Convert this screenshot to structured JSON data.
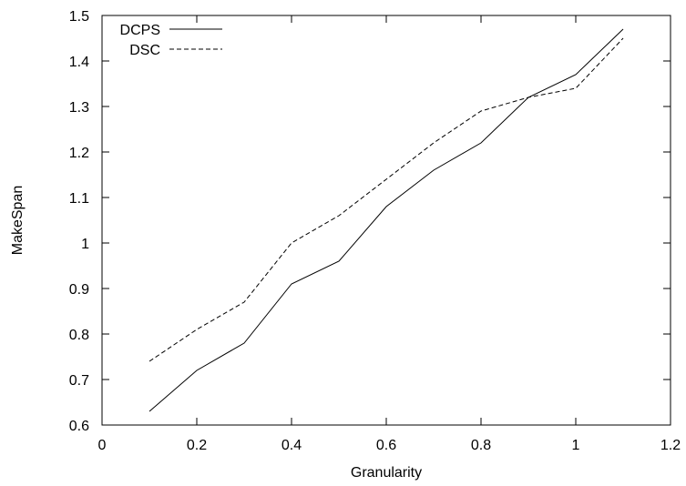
{
  "chart_data": {
    "type": "line",
    "title": "",
    "xlabel": "Granularity",
    "ylabel": "MakeSpan",
    "xlim": [
      0,
      1.2
    ],
    "ylim": [
      0.6,
      1.5
    ],
    "x_ticks": [
      0,
      0.2,
      0.4,
      0.6,
      0.8,
      1,
      1.2
    ],
    "x_tick_labels": [
      "0",
      "0.2",
      "0.4",
      "0.6",
      "0.8",
      "1",
      "1.2"
    ],
    "y_ticks": [
      0.6,
      0.7,
      0.8,
      0.9,
      1.0,
      1.1,
      1.2,
      1.3,
      1.4,
      1.5
    ],
    "y_tick_labels": [
      "0.6",
      "0.7",
      "0.8",
      "0.9",
      "1",
      "1.1",
      "1.2",
      "1.3",
      "1.4",
      "1.5"
    ],
    "grid": false,
    "legend_position": "top-left",
    "x": [
      0.1,
      0.2,
      0.3,
      0.4,
      0.5,
      0.6,
      0.7,
      0.8,
      0.9,
      1.0,
      1.1
    ],
    "series": [
      {
        "name": "DCPS",
        "style": "solid",
        "color": "#000000",
        "values": [
          0.63,
          0.72,
          0.78,
          0.91,
          0.96,
          1.08,
          1.16,
          1.22,
          1.32,
          1.37,
          1.47
        ]
      },
      {
        "name": "DSC",
        "style": "dashed",
        "color": "#000000",
        "values": [
          0.74,
          0.81,
          0.87,
          1.0,
          1.06,
          1.14,
          1.22,
          1.29,
          1.32,
          1.34,
          1.45
        ]
      }
    ]
  }
}
